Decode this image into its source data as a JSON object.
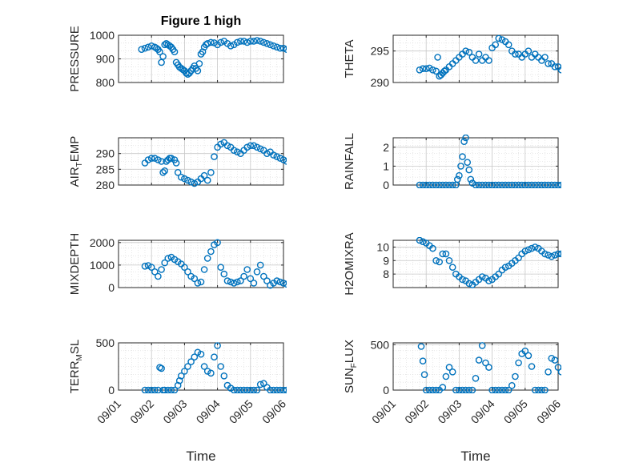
{
  "figure": {
    "title": "Figure 1 high",
    "xlabel": "Time",
    "xticks": [
      "09/01",
      "09/02",
      "09/03",
      "09/04",
      "09/05",
      "09/06"
    ]
  },
  "chart_data": [
    {
      "type": "scatter",
      "ylabel": "PRESSURE",
      "ylim": [
        800,
        1000
      ],
      "yticks": [
        800,
        900,
        1000
      ],
      "grid": true,
      "marker_color": "#0072bd",
      "x": [
        0.7,
        0.8,
        0.9,
        1.0,
        1.1,
        1.15,
        1.2,
        1.25,
        1.3,
        1.35,
        1.4,
        1.45,
        1.5,
        1.55,
        1.6,
        1.65,
        1.7,
        1.75,
        1.8,
        1.85,
        1.9,
        1.95,
        2.0,
        2.05,
        2.1,
        2.15,
        2.2,
        2.25,
        2.3,
        2.35,
        2.4,
        2.45,
        2.5,
        2.55,
        2.6,
        2.65,
        2.7,
        2.8,
        2.9,
        3.0,
        3.1,
        3.2,
        3.3,
        3.4,
        3.5,
        3.6,
        3.7,
        3.8,
        3.9,
        4.0,
        4.1,
        4.2,
        4.3,
        4.4,
        4.5,
        4.6,
        4.7,
        4.8,
        4.9,
        5.0,
        5.1,
        5.2,
        5.3,
        5.4,
        5.5,
        5.6,
        5.7,
        5.8
      ],
      "y": [
        940,
        945,
        950,
        955,
        950,
        945,
        940,
        930,
        885,
        910,
        960,
        965,
        960,
        955,
        950,
        940,
        930,
        885,
        875,
        865,
        860,
        855,
        850,
        840,
        835,
        840,
        850,
        860,
        870,
        860,
        850,
        880,
        920,
        930,
        950,
        960,
        965,
        970,
        968,
        960,
        970,
        975,
        965,
        955,
        960,
        970,
        975,
        975,
        970,
        975,
        975,
        978,
        975,
        970,
        965,
        960,
        955,
        950,
        945,
        945,
        940,
        935,
        930,
        925,
        920,
        925,
        930,
        925
      ]
    },
    {
      "type": "scatter",
      "ylabel": "THETA",
      "ylim": [
        290,
        297.5
      ],
      "yticks": [
        290,
        295
      ],
      "grid": true,
      "marker_color": "#0072bd",
      "x": [
        0.8,
        0.9,
        1.0,
        1.1,
        1.2,
        1.3,
        1.35,
        1.4,
        1.45,
        1.5,
        1.55,
        1.6,
        1.7,
        1.8,
        1.9,
        2.0,
        2.1,
        2.2,
        2.3,
        2.4,
        2.5,
        2.6,
        2.7,
        2.8,
        2.9,
        3.0,
        3.1,
        3.2,
        3.3,
        3.4,
        3.5,
        3.6,
        3.7,
        3.8,
        3.9,
        4.0,
        4.1,
        4.2,
        4.3,
        4.4,
        4.5,
        4.6,
        4.7,
        4.8,
        4.9,
        5.0,
        5.1,
        5.2,
        5.3,
        5.4,
        5.5,
        5.6,
        5.7,
        5.8
      ],
      "y": [
        292.0,
        292.2,
        292.2,
        292.3,
        292.0,
        291.8,
        294.0,
        291.0,
        291.2,
        291.5,
        291.8,
        292.0,
        292.5,
        293.0,
        293.5,
        294.0,
        294.5,
        295.0,
        294.8,
        294.0,
        293.5,
        294.5,
        293.5,
        294.0,
        293.5,
        295.5,
        296.0,
        297.0,
        296.8,
        296.5,
        296.0,
        295.0,
        294.5,
        294.5,
        294.0,
        294.5,
        295.0,
        294.0,
        294.5,
        294.0,
        293.5,
        294.0,
        293.0,
        293.0,
        292.5,
        292.5,
        292.0,
        292.5,
        292.5,
        292.0,
        292.0,
        292.5,
        292.5,
        292.8
      ]
    },
    {
      "type": "scatter",
      "ylabel": "AIR_TEMP",
      "ylim": [
        280,
        295
      ],
      "yticks": [
        280,
        285,
        290
      ],
      "grid": true,
      "marker_color": "#0072bd",
      "x": [
        0.8,
        0.9,
        1.0,
        1.1,
        1.2,
        1.3,
        1.35,
        1.4,
        1.45,
        1.5,
        1.55,
        1.6,
        1.7,
        1.75,
        1.8,
        1.9,
        2.0,
        2.1,
        2.2,
        2.3,
        2.4,
        2.5,
        2.6,
        2.7,
        2.8,
        2.9,
        3.0,
        3.1,
        3.2,
        3.3,
        3.4,
        3.5,
        3.6,
        3.7,
        3.8,
        3.9,
        4.0,
        4.1,
        4.2,
        4.3,
        4.4,
        4.5,
        4.6,
        4.7,
        4.8,
        4.9,
        5.0,
        5.1,
        5.2,
        5.3,
        5.4,
        5.5,
        5.6,
        5.7,
        5.8
      ],
      "y": [
        287.0,
        288.0,
        288.5,
        288.5,
        288.0,
        287.5,
        284.0,
        284.5,
        287.5,
        288.0,
        288.5,
        288.5,
        288.0,
        287.0,
        284.0,
        282.5,
        282.0,
        281.5,
        281.0,
        280.5,
        281.0,
        282.0,
        283.0,
        281.5,
        284.0,
        289.0,
        292.0,
        293.0,
        293.5,
        292.5,
        292.0,
        291.0,
        290.5,
        290.0,
        291.0,
        292.0,
        292.5,
        292.5,
        292.0,
        291.5,
        291.0,
        290.0,
        290.5,
        289.5,
        289.0,
        288.5,
        288.0,
        287.5,
        287.0,
        286.0,
        285.5,
        286.5,
        287.0,
        286.5,
        286.0
      ]
    },
    {
      "type": "scatter",
      "ylabel": "RAINFALL",
      "ylim": [
        0,
        2.5
      ],
      "yticks": [
        0,
        1,
        2
      ],
      "grid": true,
      "marker_color": "#0072bd",
      "x": [
        0.8,
        0.9,
        1.0,
        1.1,
        1.2,
        1.3,
        1.4,
        1.5,
        1.6,
        1.7,
        1.8,
        1.9,
        1.95,
        2.0,
        2.05,
        2.1,
        2.15,
        2.2,
        2.25,
        2.3,
        2.35,
        2.4,
        2.5,
        2.6,
        2.7,
        2.8,
        2.9,
        3.0,
        3.1,
        3.2,
        3.3,
        3.4,
        3.5,
        3.6,
        3.7,
        3.8,
        3.9,
        4.0,
        4.1,
        4.2,
        4.3,
        4.4,
        4.5,
        4.6,
        4.7,
        4.8,
        4.9,
        5.0,
        5.1,
        5.2,
        5.3,
        5.4,
        5.5,
        5.6,
        5.7,
        5.8
      ],
      "y": [
        0,
        0,
        0,
        0,
        0,
        0,
        0,
        0,
        0,
        0,
        0,
        0,
        0.3,
        0.5,
        1.0,
        1.5,
        2.3,
        2.5,
        1.2,
        0.8,
        0.3,
        0.1,
        0,
        0,
        0,
        0,
        0,
        0,
        0,
        0,
        0,
        0,
        0,
        0,
        0,
        0,
        0,
        0,
        0,
        0,
        0,
        0,
        0,
        0,
        0,
        0,
        0,
        0,
        0,
        0,
        0.3,
        0,
        0,
        0,
        0,
        0
      ]
    },
    {
      "type": "scatter",
      "ylabel": "MIXDEPTH",
      "ylim": [
        0,
        2100
      ],
      "yticks": [
        0,
        1000,
        2000
      ],
      "grid": true,
      "marker_color": "#0072bd",
      "x": [
        0.8,
        0.9,
        1.0,
        1.1,
        1.2,
        1.3,
        1.4,
        1.5,
        1.6,
        1.7,
        1.8,
        1.9,
        2.0,
        2.1,
        2.2,
        2.3,
        2.4,
        2.5,
        2.6,
        2.7,
        2.8,
        2.9,
        3.0,
        3.1,
        3.2,
        3.3,
        3.4,
        3.5,
        3.6,
        3.7,
        3.8,
        3.9,
        4.0,
        4.1,
        4.2,
        4.3,
        4.4,
        4.5,
        4.6,
        4.7,
        4.8,
        4.9,
        5.0,
        5.1,
        5.2,
        5.3,
        5.4,
        5.5,
        5.6,
        5.7,
        5.8
      ],
      "y": [
        950,
        980,
        900,
        700,
        500,
        800,
        1100,
        1300,
        1350,
        1250,
        1150,
        1050,
        900,
        700,
        500,
        400,
        200,
        250,
        800,
        1300,
        1600,
        1900,
        2000,
        900,
        600,
        300,
        250,
        200,
        250,
        300,
        500,
        800,
        400,
        200,
        700,
        1000,
        500,
        300,
        100,
        200,
        300,
        250,
        200,
        150,
        100,
        300,
        600,
        900,
        1000,
        600,
        400
      ]
    },
    {
      "type": "scatter",
      "ylabel": "H2OMIXRA",
      "ylim": [
        7,
        10.5
      ],
      "yticks": [
        8,
        9,
        10
      ],
      "grid": true,
      "marker_color": "#0072bd",
      "x": [
        0.8,
        0.9,
        1.0,
        1.1,
        1.2,
        1.3,
        1.4,
        1.5,
        1.6,
        1.7,
        1.8,
        1.9,
        2.0,
        2.1,
        2.2,
        2.3,
        2.4,
        2.5,
        2.6,
        2.7,
        2.8,
        2.9,
        3.0,
        3.1,
        3.2,
        3.3,
        3.4,
        3.5,
        3.6,
        3.7,
        3.8,
        3.9,
        4.0,
        4.1,
        4.2,
        4.3,
        4.4,
        4.5,
        4.6,
        4.7,
        4.8,
        4.9,
        5.0,
        5.1,
        5.2,
        5.3,
        5.4,
        5.5,
        5.6,
        5.7,
        5.8
      ],
      "y": [
        10.5,
        10.4,
        10.3,
        10.1,
        9.9,
        9.0,
        8.9,
        9.5,
        9.5,
        9.0,
        8.5,
        8.0,
        7.8,
        7.6,
        7.5,
        7.3,
        7.2,
        7.4,
        7.6,
        7.8,
        7.7,
        7.5,
        7.6,
        7.8,
        8.0,
        8.3,
        8.5,
        8.6,
        8.8,
        9.0,
        9.2,
        9.5,
        9.7,
        9.8,
        9.9,
        10.0,
        9.9,
        9.7,
        9.5,
        9.4,
        9.3,
        9.4,
        9.5,
        9.5,
        9.4,
        9.3,
        9.4,
        9.5,
        9.4,
        9.3,
        9.2
      ]
    },
    {
      "type": "scatter",
      "ylabel": "TERR_MSL",
      "ylim": [
        0,
        500
      ],
      "yticks": [
        0,
        500
      ],
      "grid": true,
      "marker_color": "#0072bd",
      "x": [
        0.8,
        0.9,
        1.0,
        1.1,
        1.2,
        1.25,
        1.3,
        1.35,
        1.4,
        1.5,
        1.6,
        1.7,
        1.8,
        1.85,
        1.9,
        2.0,
        2.1,
        2.2,
        2.3,
        2.4,
        2.5,
        2.6,
        2.7,
        2.8,
        2.9,
        3.0,
        3.1,
        3.2,
        3.3,
        3.4,
        3.5,
        3.6,
        3.7,
        3.8,
        3.9,
        4.0,
        4.1,
        4.2,
        4.3,
        4.4,
        4.5,
        4.6,
        4.7,
        4.8,
        4.9,
        5.0,
        5.1,
        5.2,
        5.3,
        5.4,
        5.5,
        5.6,
        5.7,
        5.8
      ],
      "y": [
        0,
        0,
        0,
        0,
        0,
        240,
        230,
        0,
        0,
        0,
        0,
        0,
        50,
        100,
        150,
        200,
        250,
        300,
        350,
        400,
        380,
        250,
        200,
        180,
        350,
        470,
        250,
        150,
        50,
        20,
        0,
        0,
        0,
        0,
        0,
        0,
        0,
        0,
        60,
        70,
        30,
        0,
        0,
        0,
        0,
        0,
        0,
        0,
        0,
        20,
        150,
        200,
        230,
        280
      ]
    },
    {
      "type": "scatter",
      "ylabel": "SUN_FLUX",
      "ylim": [
        0,
        520
      ],
      "yticks": [
        0,
        500
      ],
      "grid": true,
      "marker_color": "#0072bd",
      "x": [
        0.85,
        0.9,
        0.95,
        1.0,
        1.1,
        1.2,
        1.3,
        1.4,
        1.5,
        1.6,
        1.7,
        1.8,
        1.9,
        2.0,
        2.1,
        2.2,
        2.3,
        2.4,
        2.5,
        2.6,
        2.7,
        2.8,
        2.9,
        3.0,
        3.1,
        3.2,
        3.3,
        3.4,
        3.5,
        3.6,
        3.7,
        3.8,
        3.9,
        4.0,
        4.1,
        4.2,
        4.3,
        4.4,
        4.5,
        4.6,
        4.7,
        4.8,
        4.9,
        5.0,
        5.1,
        5.2,
        5.3,
        5.4,
        5.5,
        5.6,
        5.7,
        5.8
      ],
      "y": [
        480,
        320,
        170,
        0,
        0,
        0,
        0,
        0,
        30,
        150,
        250,
        200,
        0,
        0,
        0,
        0,
        0,
        0,
        130,
        330,
        490,
        300,
        250,
        0,
        0,
        0,
        0,
        0,
        0,
        50,
        150,
        300,
        400,
        430,
        380,
        260,
        0,
        0,
        0,
        0,
        200,
        350,
        330,
        250,
        200,
        300,
        280,
        240,
        230,
        150,
        200,
        180
      ]
    }
  ]
}
